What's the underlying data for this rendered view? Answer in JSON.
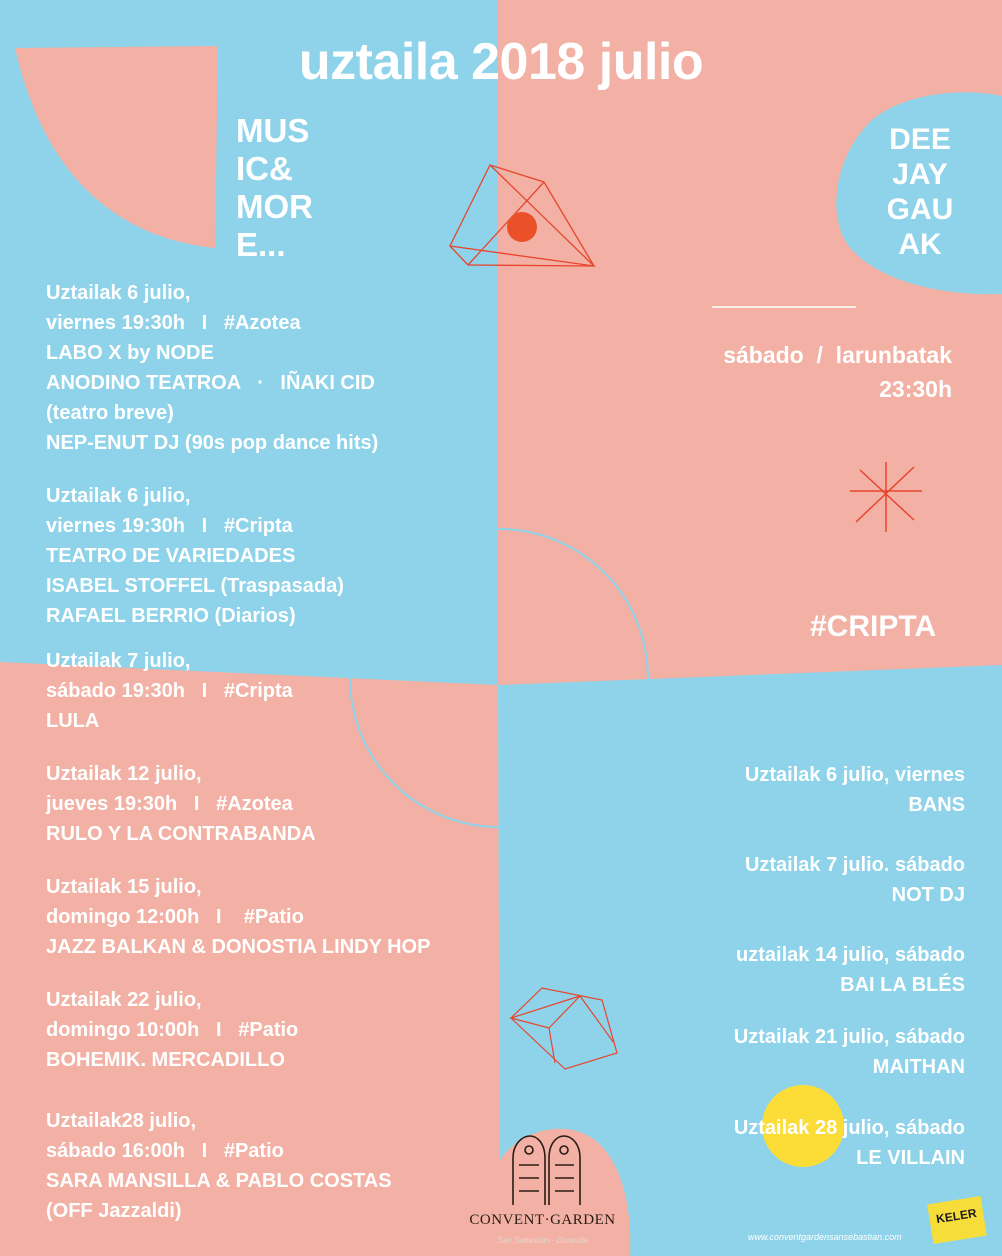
{
  "poster": {
    "title": "uztaila 2018 julio",
    "music_more_lines": [
      "MUS",
      "IC&",
      "MOR",
      "E..."
    ],
    "deejay_lines": [
      "DEE",
      "JAY",
      "GAU",
      "AK"
    ],
    "dj_schedule": {
      "day": "sábado  /  larunbatak",
      "time": "23:30h"
    },
    "dj_venue": "#CRIPTA",
    "events": [
      {
        "lines": [
          "Uztailak 6 julio,",
          "viernes 19:30h   I   #Azotea",
          "LABO X by NODE",
          "ANODINO TEATROA   ·   IÑAKI CID",
          "(teatro breve)",
          "NEP-ENUT DJ (90s pop dance hits)"
        ]
      },
      {
        "lines": [
          "Uztailak 6 julio,",
          "viernes 19:30h   I   #Cripta",
          "TEATRO DE VARIEDADES",
          "ISABEL STOFFEL (Traspasada)",
          "RAFAEL BERRIO (Diarios)"
        ]
      },
      {
        "lines": [
          "Uztailak 7 julio,",
          "sábado 19:30h   I   #Cripta",
          "LULA"
        ]
      },
      {
        "lines": [
          "Uztailak 12 julio,",
          "jueves 19:30h   I   #Azotea",
          "RULO Y LA CONTRABANDA"
        ]
      },
      {
        "lines": [
          "Uztailak 15 julio,",
          "domingo 12:00h   I    #Patio",
          "JAZZ BALKAN & DONOSTIA LINDY HOP"
        ]
      },
      {
        "lines": [
          "Uztailak 22 julio,",
          "domingo 10:00h   I   #Patio",
          "BOHEMIK. MERCADILLO"
        ]
      },
      {
        "lines": [
          "Uztailak28 julio,",
          "sábado 16:00h   I   #Patio",
          "SARA MANSILLA & PABLO COSTAS",
          "(OFF Jazzaldi)"
        ]
      }
    ],
    "dj_nights": [
      {
        "date": "Uztailak 6 julio, viernes",
        "artist": "BANS"
      },
      {
        "date": "Uztailak 7 julio. sábado",
        "artist": "NOT DJ"
      },
      {
        "date": "uztailak 14 julio, sábado",
        "artist": "BAI LA BLÉS"
      },
      {
        "date": "Uztailak 21 julio, sábado",
        "artist": "MAITHAN"
      },
      {
        "date": "Uztailak 28 julio, sábado",
        "artist": "LE VILLAIN"
      }
    ],
    "brand": "CONVENT·GARDEN",
    "brand_subtitle": "San Sebastián · Donostia",
    "website": "www.conventgardensansebastian.com",
    "sponsor": "KELER"
  },
  "colors": {
    "sky": "#8ed3ea",
    "salmon": "#f2b1a4",
    "red_line": "#e8452c",
    "red_dot": "#ea5128",
    "yellow_dot": "#fcdd38",
    "white": "#ffffff"
  },
  "icons": [
    "triangle-prism-icon",
    "asterisk-star-icon",
    "circle-outline-icon",
    "pentagon-solid-icon",
    "gate-logo-icon"
  ]
}
